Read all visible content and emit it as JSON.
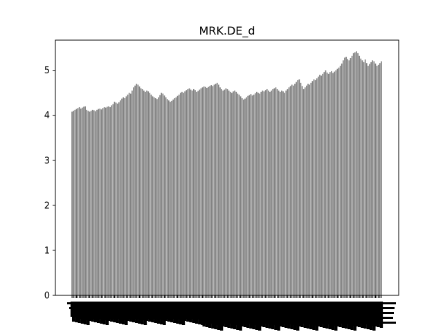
{
  "chart_data": {
    "type": "bar",
    "title": "MRK.DE_d",
    "xlabel": "",
    "ylabel": "",
    "ylim": [
      0,
      5.67
    ],
    "yticks": [
      0,
      1,
      2,
      3,
      4,
      5
    ],
    "bar_color": "#808080",
    "grid": false,
    "legend": "none",
    "x_tick_labels_rotated": "vertical, overlapping and unreadable",
    "values": [
      4.08,
      4.1,
      4.12,
      4.14,
      4.16,
      4.18,
      4.15,
      4.17,
      4.19,
      4.2,
      4.12,
      4.1,
      4.08,
      4.1,
      4.12,
      4.11,
      4.09,
      4.12,
      4.14,
      4.15,
      4.13,
      4.16,
      4.18,
      4.17,
      4.19,
      4.2,
      4.18,
      4.22,
      4.25,
      4.3,
      4.28,
      4.26,
      4.29,
      4.33,
      4.37,
      4.4,
      4.38,
      4.42,
      4.46,
      4.5,
      4.48,
      4.55,
      4.62,
      4.66,
      4.7,
      4.68,
      4.64,
      4.6,
      4.58,
      4.55,
      4.52,
      4.55,
      4.53,
      4.5,
      4.46,
      4.42,
      4.4,
      4.38,
      4.36,
      4.4,
      4.45,
      4.5,
      4.48,
      4.44,
      4.4,
      4.36,
      4.33,
      4.3,
      4.32,
      4.35,
      4.38,
      4.4,
      4.43,
      4.46,
      4.5,
      4.52,
      4.5,
      4.53,
      4.56,
      4.58,
      4.6,
      4.57,
      4.55,
      4.58,
      4.56,
      4.52,
      4.54,
      4.57,
      4.6,
      4.62,
      4.64,
      4.63,
      4.61,
      4.63,
      4.65,
      4.67,
      4.65,
      4.68,
      4.7,
      4.72,
      4.68,
      4.62,
      4.58,
      4.55,
      4.57,
      4.6,
      4.58,
      4.55,
      4.52,
      4.5,
      4.53,
      4.55,
      4.52,
      4.48,
      4.46,
      4.42,
      4.38,
      4.35,
      4.37,
      4.4,
      4.43,
      4.45,
      4.47,
      4.44,
      4.46,
      4.49,
      4.52,
      4.5,
      4.48,
      4.52,
      4.55,
      4.53,
      4.56,
      4.58,
      4.55,
      4.52,
      4.55,
      4.58,
      4.6,
      4.62,
      4.58,
      4.55,
      4.52,
      4.55,
      4.53,
      4.5,
      4.55,
      4.58,
      4.62,
      4.65,
      4.68,
      4.66,
      4.7,
      4.74,
      4.78,
      4.8,
      4.72,
      4.65,
      4.58,
      4.62,
      4.66,
      4.7,
      4.68,
      4.72,
      4.76,
      4.8,
      4.78,
      4.82,
      4.86,
      4.9,
      4.88,
      4.92,
      4.96,
      5.0,
      4.95,
      4.92,
      4.96,
      4.98,
      4.94,
      4.97,
      5.0,
      5.03,
      5.06,
      5.1,
      5.15,
      5.22,
      5.28,
      5.3,
      5.25,
      5.22,
      5.27,
      5.32,
      5.38,
      5.4,
      5.42,
      5.38,
      5.32,
      5.26,
      5.22,
      5.18,
      5.24,
      5.16,
      5.1,
      5.14,
      5.18,
      5.22,
      5.2,
      5.15,
      5.1,
      5.12,
      5.16,
      5.2
    ]
  }
}
